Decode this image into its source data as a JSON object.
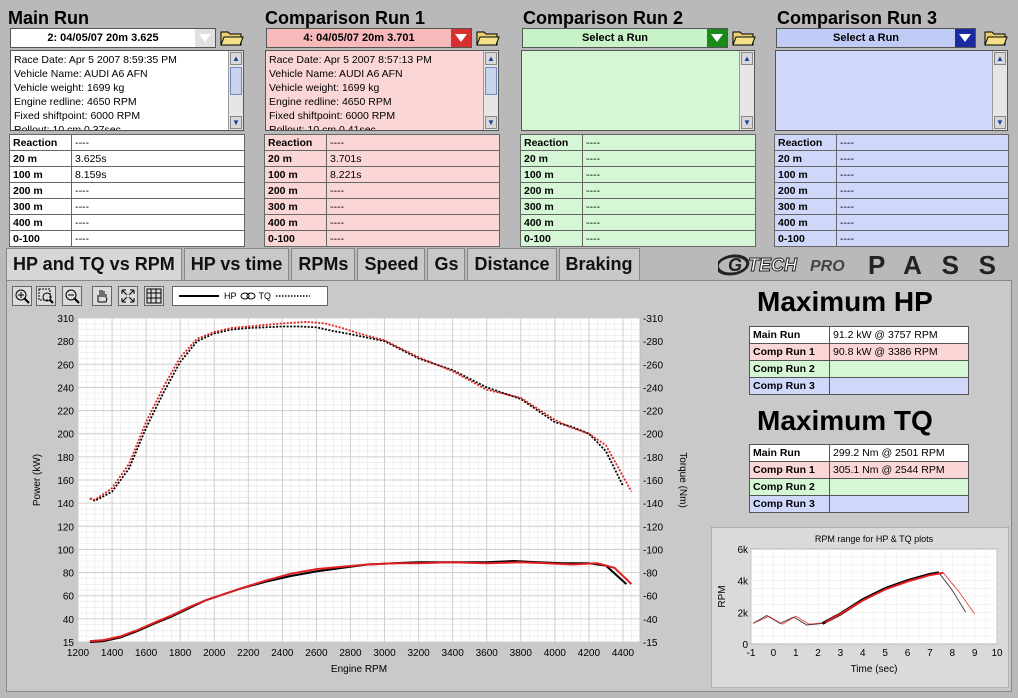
{
  "runs": {
    "main": {
      "title": "Main Run",
      "select": "2:  04/05/07 20m  3.625",
      "info": [
        "Race Date:  Apr 5 2007  8:59:35 PM",
        "Vehicle Name:  AUDI A6 AFN",
        "Vehicle weight:  1699 kg",
        "Engine redline:  4650 RPM",
        "Fixed shiftpoint:  6000 RPM",
        "Rollout:  10 cm  0.37sec"
      ],
      "times": [
        [
          "Reaction",
          "----"
        ],
        [
          "20 m",
          "3.625s"
        ],
        [
          "100 m",
          "8.159s"
        ],
        [
          "200 m",
          "----"
        ],
        [
          "300 m",
          "----"
        ],
        [
          "400 m",
          "----"
        ],
        [
          "0-100",
          "----"
        ]
      ]
    },
    "comp1": {
      "title": "Comparison Run 1",
      "select": "4:  04/05/07 20m  3.701",
      "info": [
        "Race Date:  Apr 5 2007  8:57:13 PM",
        "Vehicle Name:  AUDI A6 AFN",
        "Vehicle weight:  1699 kg",
        "Engine redline:  4650 RPM",
        "Fixed shiftpoint:  6000 RPM",
        "Rollout:  10 cm  0.41sec"
      ],
      "times": [
        [
          "Reaction",
          "----"
        ],
        [
          "20 m",
          "3.701s"
        ],
        [
          "100 m",
          "8.221s"
        ],
        [
          "200 m",
          "----"
        ],
        [
          "300 m",
          "----"
        ],
        [
          "400 m",
          "----"
        ],
        [
          "0-100",
          "----"
        ]
      ]
    },
    "comp2": {
      "title": "Comparison Run 2",
      "select": "Select a Run",
      "times": [
        [
          "Reaction",
          "----"
        ],
        [
          "20 m",
          "----"
        ],
        [
          "100 m",
          "----"
        ],
        [
          "200 m",
          "----"
        ],
        [
          "300 m",
          "----"
        ],
        [
          "400 m",
          "----"
        ],
        [
          "0-100",
          "----"
        ]
      ]
    },
    "comp3": {
      "title": "Comparison Run 3",
      "select": "Select a Run",
      "times": [
        [
          "Reaction",
          "----"
        ],
        [
          "20 m",
          "----"
        ],
        [
          "100 m",
          "----"
        ],
        [
          "200 m",
          "----"
        ],
        [
          "300 m",
          "----"
        ],
        [
          "400 m",
          "----"
        ],
        [
          "0-100",
          "----"
        ]
      ]
    }
  },
  "tabs": [
    "HP and TQ vs RPM",
    "HP vs time",
    "RPMs",
    "Speed",
    "Gs",
    "Distance",
    "Braking"
  ],
  "brand": {
    "left": "G",
    "mid": "TECH",
    "pro": "PRO",
    "right": "PASS"
  },
  "legend": {
    "hp": "HP",
    "tq": "TQ"
  },
  "max_hp": {
    "title": "Maximum HP",
    "rows": [
      [
        "Main Run",
        "91.2 kW @ 3757 RPM"
      ],
      [
        "Comp Run 1",
        "90.8 kW @ 3386 RPM"
      ],
      [
        "Comp Run 2",
        ""
      ],
      [
        "Comp Run 3",
        ""
      ]
    ]
  },
  "max_tq": {
    "title": "Maximum TQ",
    "rows": [
      [
        "Main Run",
        "299.2 Nm @ 2501 RPM"
      ],
      [
        "Comp Run 1",
        "305.1 Nm @ 2544 RPM"
      ],
      [
        "Comp Run 2",
        ""
      ],
      [
        "Comp Run 3",
        ""
      ]
    ]
  },
  "colors": {
    "main": "#000000",
    "comp1": "#e02020",
    "comp2": "#1a8a1a",
    "comp3": "#1a2aa0"
  },
  "chart_data": [
    {
      "type": "line",
      "xlabel": "Engine RPM",
      "ylabel": "Power (kW)",
      "y2label": "Torque (Nm)",
      "xlim": [
        1200,
        4500
      ],
      "x_ticks": [
        1200,
        1400,
        1600,
        1800,
        2000,
        2200,
        2400,
        2600,
        2800,
        3000,
        3200,
        3400,
        3600,
        3800,
        4000,
        4200,
        4400
      ],
      "y_ticks": [
        "15",
        "40",
        "60",
        "80",
        "100",
        "120",
        "140",
        "160",
        "180",
        "200",
        "220",
        "240",
        "260",
        "280",
        "310"
      ],
      "y2_ticks": [
        "-15",
        "-40",
        "-60",
        "-80",
        "-100",
        "-120",
        "-140",
        "-160",
        "-180",
        "-200",
        "-220",
        "-240",
        "-260",
        "-280",
        "-310"
      ],
      "grid": true,
      "series": [
        {
          "role": "hp-main",
          "style": "solid",
          "x": [
            1270,
            1350,
            1450,
            1550,
            1650,
            1750,
            1850,
            1950,
            2050,
            2150,
            2300,
            2450,
            2600,
            2750,
            2900,
            3050,
            3200,
            3400,
            3600,
            3757,
            3900,
            4050,
            4200,
            4300,
            4420
          ],
          "y": [
            15,
            16,
            20,
            27,
            35,
            42,
            49,
            56,
            61,
            66,
            72,
            77,
            81,
            84,
            87,
            88,
            89,
            89,
            89,
            90,
            89,
            88,
            88,
            86,
            70
          ]
        },
        {
          "role": "hp-comp1",
          "style": "solid",
          "x": [
            1270,
            1350,
            1450,
            1550,
            1650,
            1750,
            1850,
            1950,
            2050,
            2150,
            2300,
            2450,
            2600,
            2750,
            2900,
            3050,
            3200,
            3386,
            3600,
            3800,
            3950,
            4100,
            4250,
            4350,
            4450
          ],
          "y": [
            16,
            17,
            21,
            28,
            36,
            43,
            50,
            56,
            61,
            66,
            73,
            79,
            83,
            85,
            87,
            88,
            88,
            89,
            88,
            89,
            88,
            87,
            88,
            84,
            70
          ]
        },
        {
          "role": "tq-main",
          "style": "dotted",
          "x": [
            1270,
            1300,
            1400,
            1500,
            1600,
            1700,
            1800,
            1900,
            2000,
            2100,
            2200,
            2300,
            2400,
            2501,
            2600,
            2700,
            2800,
            3000,
            3200,
            3400,
            3600,
            3800,
            4000,
            4100,
            4200,
            4300,
            4400
          ],
          "y": [
            144,
            142,
            150,
            170,
            205,
            235,
            262,
            280,
            290,
            295,
            297,
            298,
            299,
            299,
            298,
            293,
            289,
            280,
            265,
            255,
            240,
            230,
            210,
            206,
            200,
            185,
            155
          ]
        },
        {
          "role": "tq-comp1",
          "style": "dotted",
          "x": [
            1270,
            1300,
            1400,
            1500,
            1600,
            1700,
            1800,
            1900,
            2000,
            2100,
            2200,
            2300,
            2400,
            2544,
            2650,
            2750,
            2850,
            3000,
            3200,
            3400,
            3600,
            3800,
            4000,
            4100,
            4200,
            4300,
            4450
          ],
          "y": [
            144,
            143,
            153,
            174,
            210,
            240,
            266,
            283,
            292,
            297,
            299,
            301,
            303,
            305,
            303,
            297,
            290,
            281,
            266,
            254,
            238,
            231,
            212,
            205,
            200,
            190,
            150
          ]
        }
      ]
    },
    {
      "type": "line",
      "title": "RPM range for HP & TQ plots",
      "xlabel": "Time (sec)",
      "ylabel": "RPM",
      "xlim": [
        -1,
        10
      ],
      "ylim": [
        0,
        6000
      ],
      "x_ticks": [
        "-1",
        "0",
        "1",
        "2",
        "3",
        "4",
        "5",
        "6",
        "7",
        "8",
        "9",
        "10"
      ],
      "y_ticks": [
        "0",
        "2k",
        "4k",
        "6k"
      ],
      "series": [
        {
          "role": "main",
          "x": [
            -0.9,
            -0.3,
            0.3,
            0.9,
            1.5,
            2.2,
            3,
            4,
            5,
            6,
            7,
            7.4,
            8,
            8.6
          ],
          "y": [
            1300,
            1800,
            1300,
            1700,
            1200,
            1300,
            1900,
            2800,
            3500,
            4000,
            4400,
            4500,
            3400,
            2000
          ]
        },
        {
          "role": "comp1",
          "x": [
            -0.9,
            -0.2,
            0.4,
            1.0,
            1.6,
            2.3,
            3,
            4,
            5,
            6,
            7,
            7.6,
            8.3,
            9.0
          ],
          "y": [
            1300,
            1750,
            1250,
            1750,
            1250,
            1350,
            1900,
            2750,
            3450,
            3950,
            4350,
            4500,
            3300,
            1900
          ]
        }
      ]
    }
  ]
}
